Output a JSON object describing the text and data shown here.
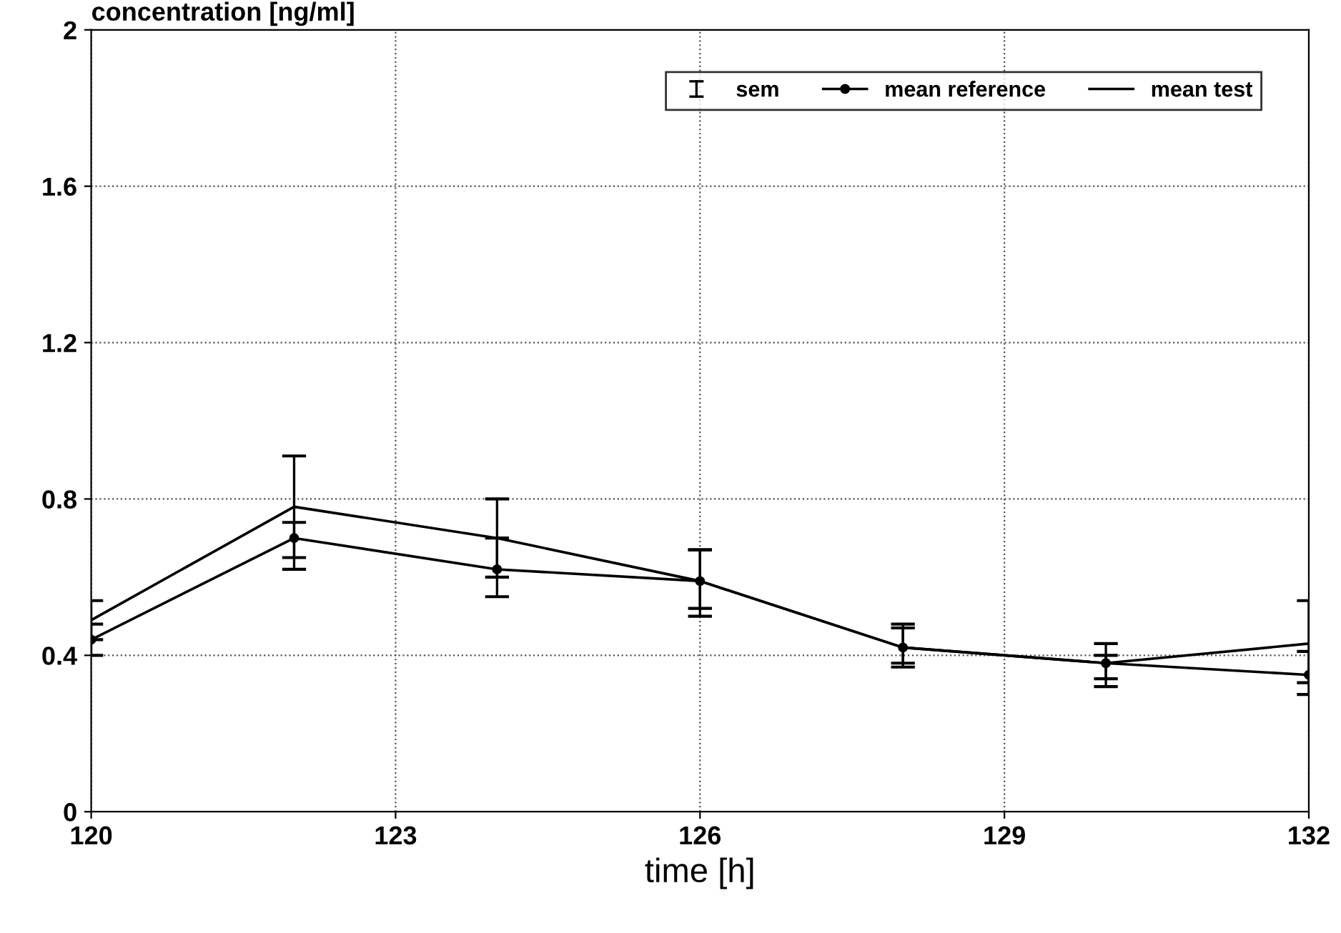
{
  "chart_data": {
    "type": "line",
    "xlabel": "time [h]",
    "ylabel": "concentration [ng/ml]",
    "x": [
      120,
      122,
      124,
      126,
      128,
      130,
      132
    ],
    "series": [
      {
        "name": "mean reference",
        "color": "#000000",
        "marker": "circle",
        "values": [
          0.44,
          0.7,
          0.62,
          0.59,
          0.42,
          0.38,
          0.35
        ],
        "errors": [
          [
            0.4,
            0.48
          ],
          [
            0.62,
            0.74
          ],
          [
            0.55,
            0.7
          ],
          [
            0.5,
            0.67
          ],
          [
            0.37,
            0.47
          ],
          [
            0.32,
            0.4
          ],
          [
            0.3,
            0.41
          ]
        ]
      },
      {
        "name": "mean test",
        "color": "#000000",
        "marker": "none",
        "values": [
          0.49,
          0.78,
          0.7,
          0.59,
          0.42,
          0.38,
          0.43
        ],
        "errors": [
          [
            0.44,
            0.54
          ],
          [
            0.65,
            0.91
          ],
          [
            0.6,
            0.8
          ],
          [
            0.52,
            0.67
          ],
          [
            0.38,
            0.48
          ],
          [
            0.34,
            0.43
          ],
          [
            0.33,
            0.54
          ]
        ]
      }
    ],
    "annotations": [
      "sem"
    ],
    "xlim": [
      120,
      132
    ],
    "xticks": [
      120,
      123,
      126,
      129,
      132
    ],
    "ylim": [
      0,
      2
    ],
    "yticks": [
      0,
      0.4,
      0.8,
      1.2,
      1.6,
      2
    ],
    "grid": true,
    "legend": "top right"
  }
}
